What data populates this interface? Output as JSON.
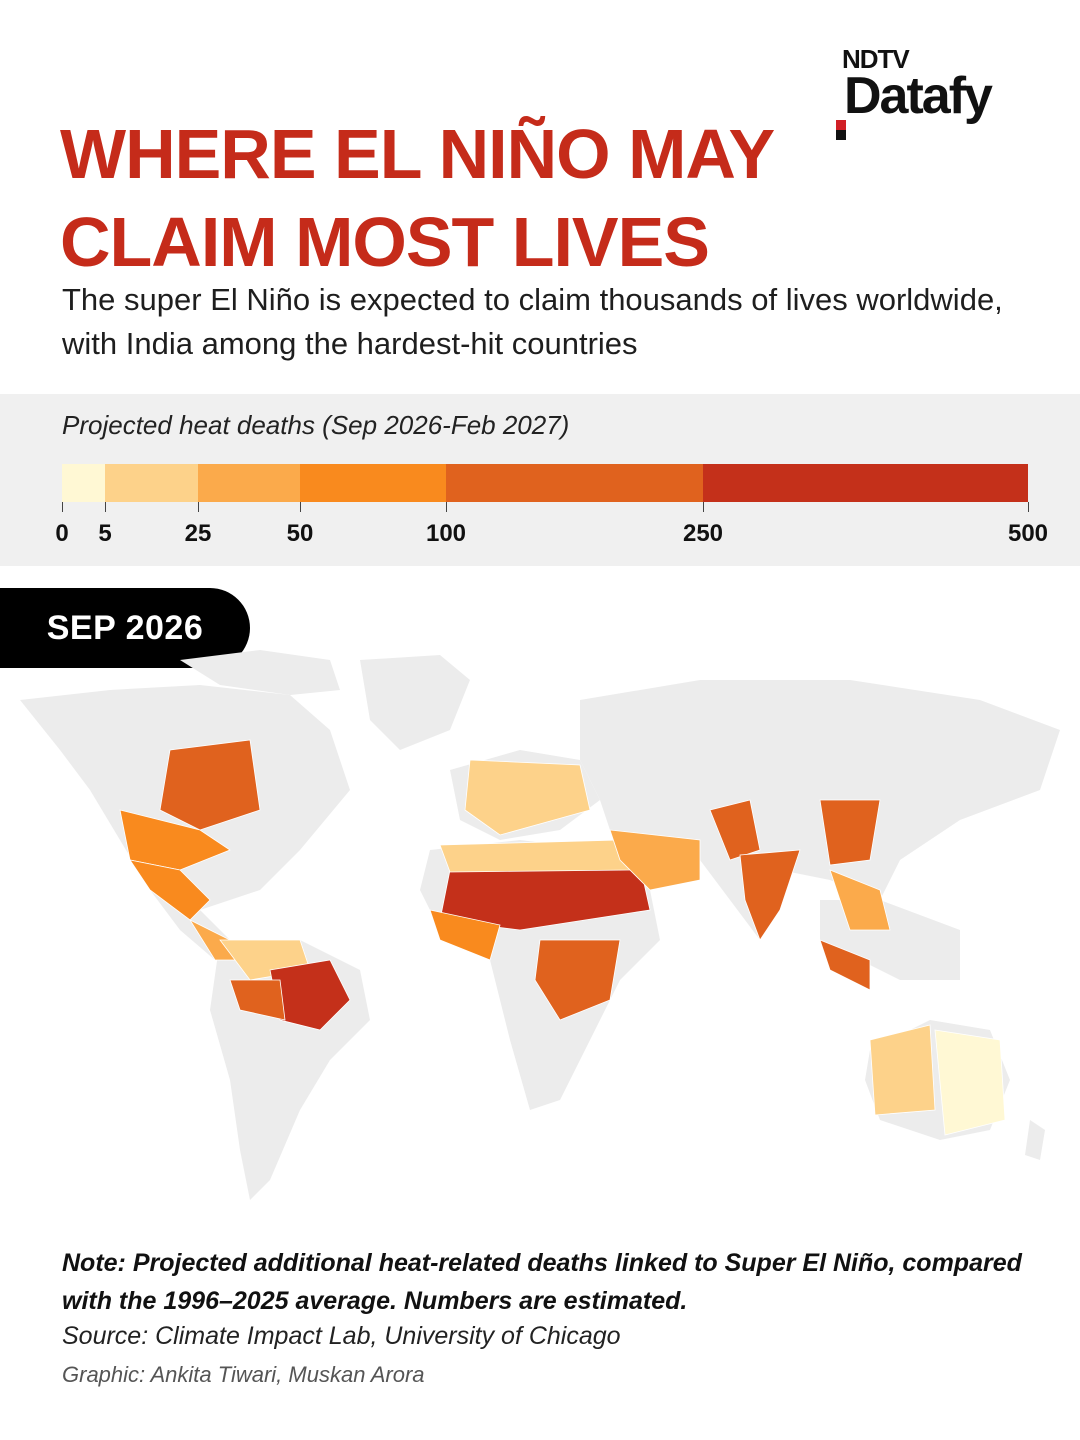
{
  "brand": {
    "line1": "NDTV",
    "line2": "Datafy"
  },
  "title": "WHERE EL NIÑO MAY CLAIM MOST LIVES",
  "subtitle": "The super El Niño is expected to claim thousands of lives worldwide, with India among the hardest-hit countries",
  "legend": {
    "title": "Projected heat deaths (Sep 2026-Feb 2027)",
    "breaks": [
      0,
      5,
      25,
      50,
      100,
      250,
      500
    ],
    "labels": [
      "0",
      "5",
      "25",
      "50",
      "100",
      "250",
      "500"
    ],
    "colors": [
      "#fff8d4",
      "#fdd28a",
      "#fbaa4b",
      "#f98a1e",
      "#e0621e",
      "#c4301a"
    ]
  },
  "month": "SEP 2026",
  "map": {
    "land_color": "#ececec",
    "regions": [
      {
        "name": "Central United States",
        "level": 5
      },
      {
        "name": "Southern United States",
        "level": 4
      },
      {
        "name": "Mexico",
        "level": 4
      },
      {
        "name": "Central America",
        "level": 3
      },
      {
        "name": "Northern South America",
        "level": 2
      },
      {
        "name": "Brazil Amazon",
        "level": 6
      },
      {
        "name": "Bolivia/Peru",
        "level": 5
      },
      {
        "name": "Sahel",
        "level": 6
      },
      {
        "name": "West Africa",
        "level": 4
      },
      {
        "name": "Central Africa",
        "level": 5
      },
      {
        "name": "North Africa",
        "level": 2
      },
      {
        "name": "Europe",
        "level": 2
      },
      {
        "name": "Middle East",
        "level": 3
      },
      {
        "name": "Pakistan",
        "level": 5
      },
      {
        "name": "India",
        "level": 5
      },
      {
        "name": "Eastern China",
        "level": 5
      },
      {
        "name": "Southeast Asia",
        "level": 3
      },
      {
        "name": "Indonesia",
        "level": 5
      },
      {
        "name": "Western Australia",
        "level": 2
      },
      {
        "name": "Eastern Australia",
        "level": 1
      }
    ]
  },
  "note": "Note: Projected additional heat-related deaths linked to Super El Niño, compared with the 1996–2025 average. Numbers are estimated.",
  "source": "Source: Climate Impact Lab, University of Chicago",
  "credit": "Graphic: Ankita Tiwari, Muskan Arora"
}
